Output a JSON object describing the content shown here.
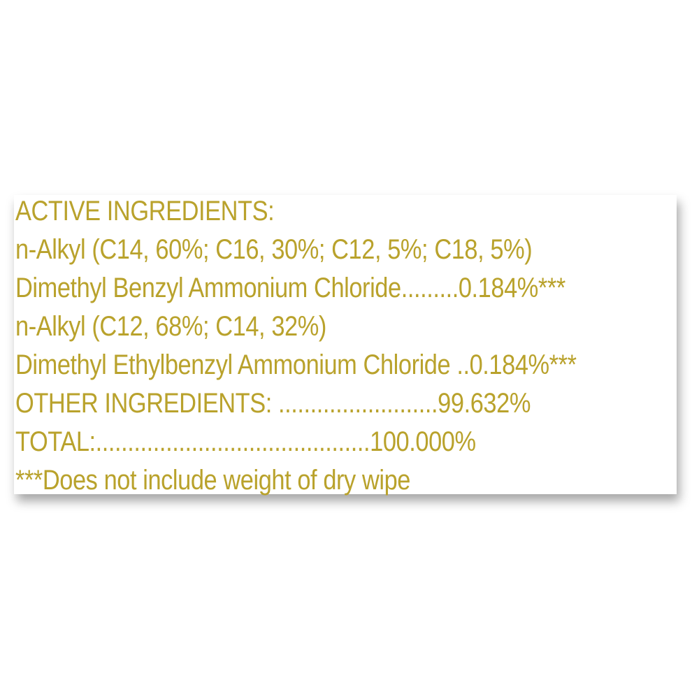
{
  "label": {
    "text_color": "#b9a22c",
    "lines": [
      "ACTIVE INGREDIENTS:",
      "n-Alkyl (C14, 60%; C16, 30%; C12, 5%; C18, 5%)",
      "Dimethyl Benzyl Ammonium Chloride.........0.184%***",
      "n-Alkyl (C12, 68%; C14, 32%)",
      "Dimethyl Ethylbenzyl Ammonium Chloride ..0.184%***",
      "OTHER INGREDIENTS: .........................99.632%",
      "TOTAL:...........................................100.000%",
      "***Does not include weight of dry wipe"
    ]
  }
}
